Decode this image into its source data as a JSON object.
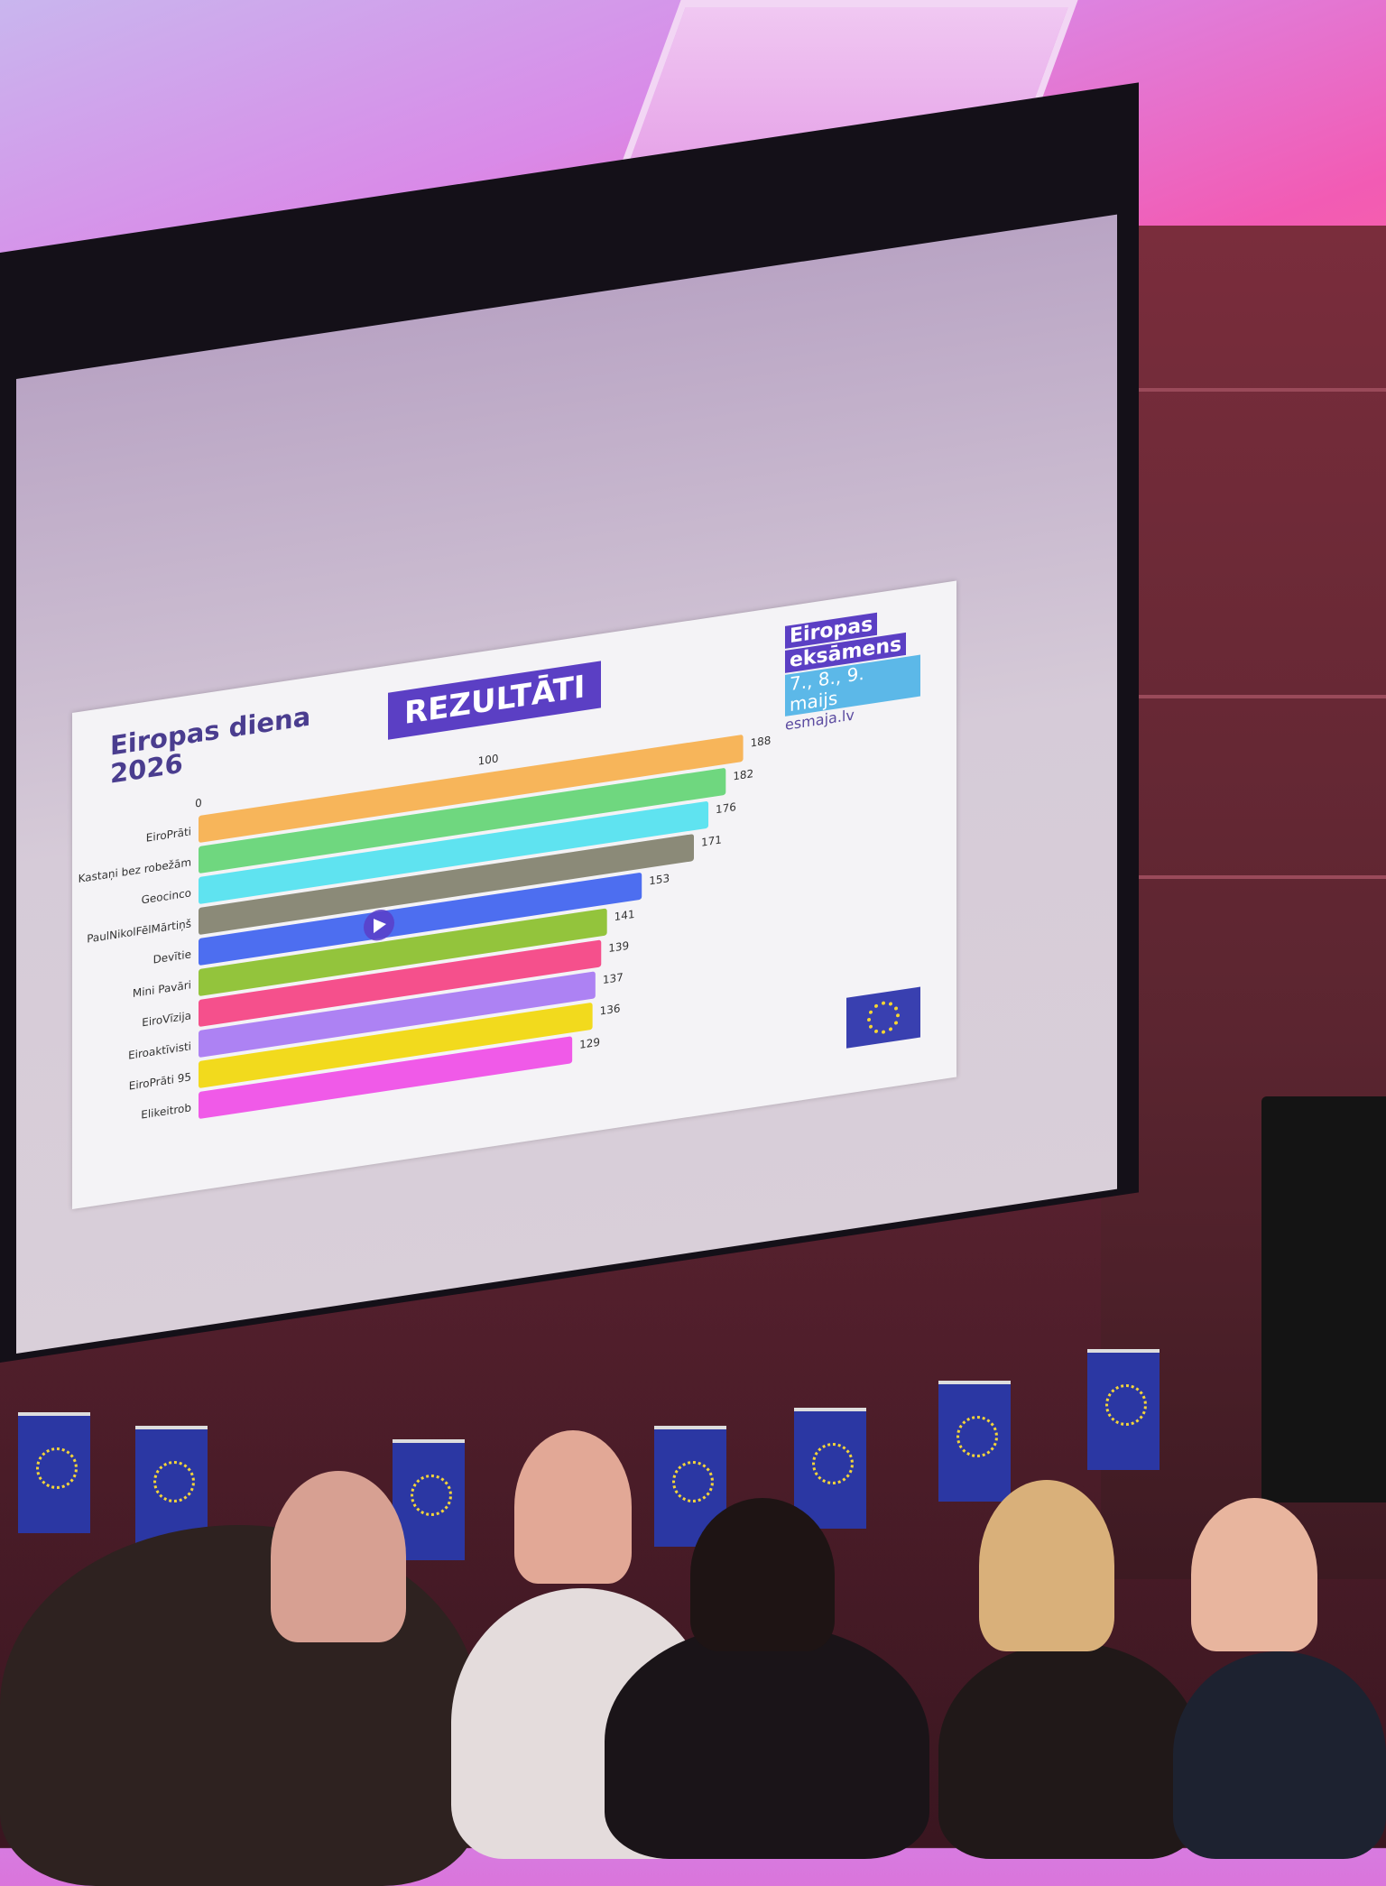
{
  "slide": {
    "title_line1": "Eiropas diena",
    "title_line2": "2026",
    "badge": "REZULTĀTI",
    "logo": {
      "line1": "Eiropas",
      "line2": "eksāmens",
      "dates": "7., 8., 9. maijs",
      "url": "esmaja.lv"
    }
  },
  "colors": {
    "accent": "#5b3fc4",
    "logo_blue": "#5cb8e8",
    "eu_blue": "#3940b0"
  },
  "chart_data": {
    "type": "bar",
    "orientation": "horizontal",
    "categories": [
      "EiroPrāti",
      "Kastaņi bez robežām",
      "Geocinco",
      "PaulNikolFēlMārtiņš",
      "Devītie",
      "Mini Pavāri",
      "EiroVīzija",
      "Eiroaktīvisti",
      "EiroPrāti 95",
      "Elikeitrob"
    ],
    "values": [
      188,
      182,
      176,
      171,
      153,
      141,
      139,
      137,
      136,
      129
    ],
    "colors": [
      "#f7b55a",
      "#6fd77f",
      "#5fe3f0",
      "#8b8a78",
      "#4d6ef0",
      "#93c43c",
      "#f5508c",
      "#ad82f3",
      "#f2da1d",
      "#f05ae8"
    ],
    "x_ticks": [
      "0",
      "100"
    ],
    "xlim": [
      0,
      190
    ],
    "grid": false
  }
}
